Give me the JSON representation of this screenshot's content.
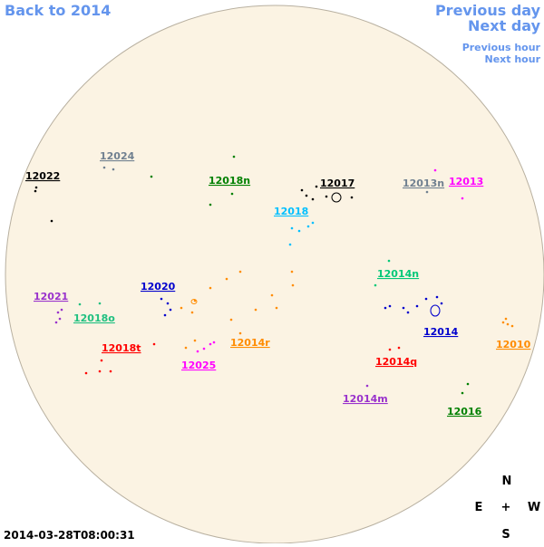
{
  "navigation": {
    "back": "Back to 2014",
    "previous_day": "Previous day",
    "next_day": "Next day",
    "previous_hour": "Previous hour",
    "next_hour": "Next hour"
  },
  "timestamp": "2014-03-28T08:00:31",
  "compass": {
    "north": "N",
    "east": "E",
    "center": "+",
    "west": "W",
    "south": "S"
  },
  "regions": [
    {
      "label": "12024",
      "color": "#708090"
    },
    {
      "label": "12022",
      "color": "#000000"
    },
    {
      "label": "12018n",
      "color": "#008000"
    },
    {
      "label": "12017",
      "color": "#000000"
    },
    {
      "label": "12013n",
      "color": "#708090"
    },
    {
      "label": "12013",
      "color": "#ff00ff"
    },
    {
      "label": "12018",
      "color": "#00bfff"
    },
    {
      "label": "12014n",
      "color": "#00c878"
    },
    {
      "label": "12021",
      "color": "#9932cc"
    },
    {
      "label": "12020",
      "color": "#0000cd"
    },
    {
      "label": "12018o",
      "color": "#20c080"
    },
    {
      "label": "12014",
      "color": "#0000cd"
    },
    {
      "label": "12010",
      "color": "#ff8c00"
    },
    {
      "label": "12018t",
      "color": "#ff0000"
    },
    {
      "label": "12014r",
      "color": "#ff8c00"
    },
    {
      "label": "12025",
      "color": "#ff00ff"
    },
    {
      "label": "12014q",
      "color": "#ff0000"
    },
    {
      "label": "12014m",
      "color": "#9932cc"
    },
    {
      "label": "12016",
      "color": "#008000"
    }
  ]
}
